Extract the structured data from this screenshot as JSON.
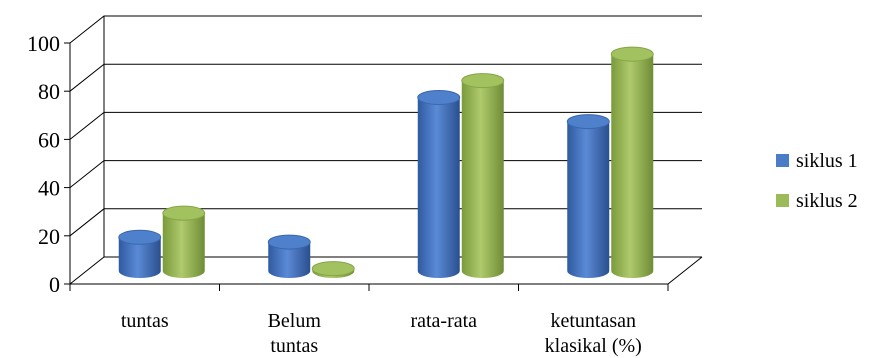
{
  "chart_data": {
    "type": "bar",
    "style": "3d-cylinder",
    "categories": [
      [
        "tuntas"
      ],
      [
        "Belum",
        "tuntas"
      ],
      [
        "rata-rata"
      ],
      [
        "ketuntasan",
        "klasikal (%)"
      ]
    ],
    "series": [
      {
        "name": "siklus 1",
        "color": "#4a7cc8",
        "values": [
          14,
          12,
          72,
          62
        ]
      },
      {
        "name": "siklus 2",
        "color": "#9bbb59",
        "values": [
          24,
          1,
          79,
          90
        ]
      }
    ],
    "ylim": [
      0,
      100
    ],
    "yticks": [
      0,
      20,
      40,
      60,
      80,
      100
    ],
    "grid": true,
    "legend_position": "right",
    "title": "",
    "xlabel": "",
    "ylabel": ""
  }
}
